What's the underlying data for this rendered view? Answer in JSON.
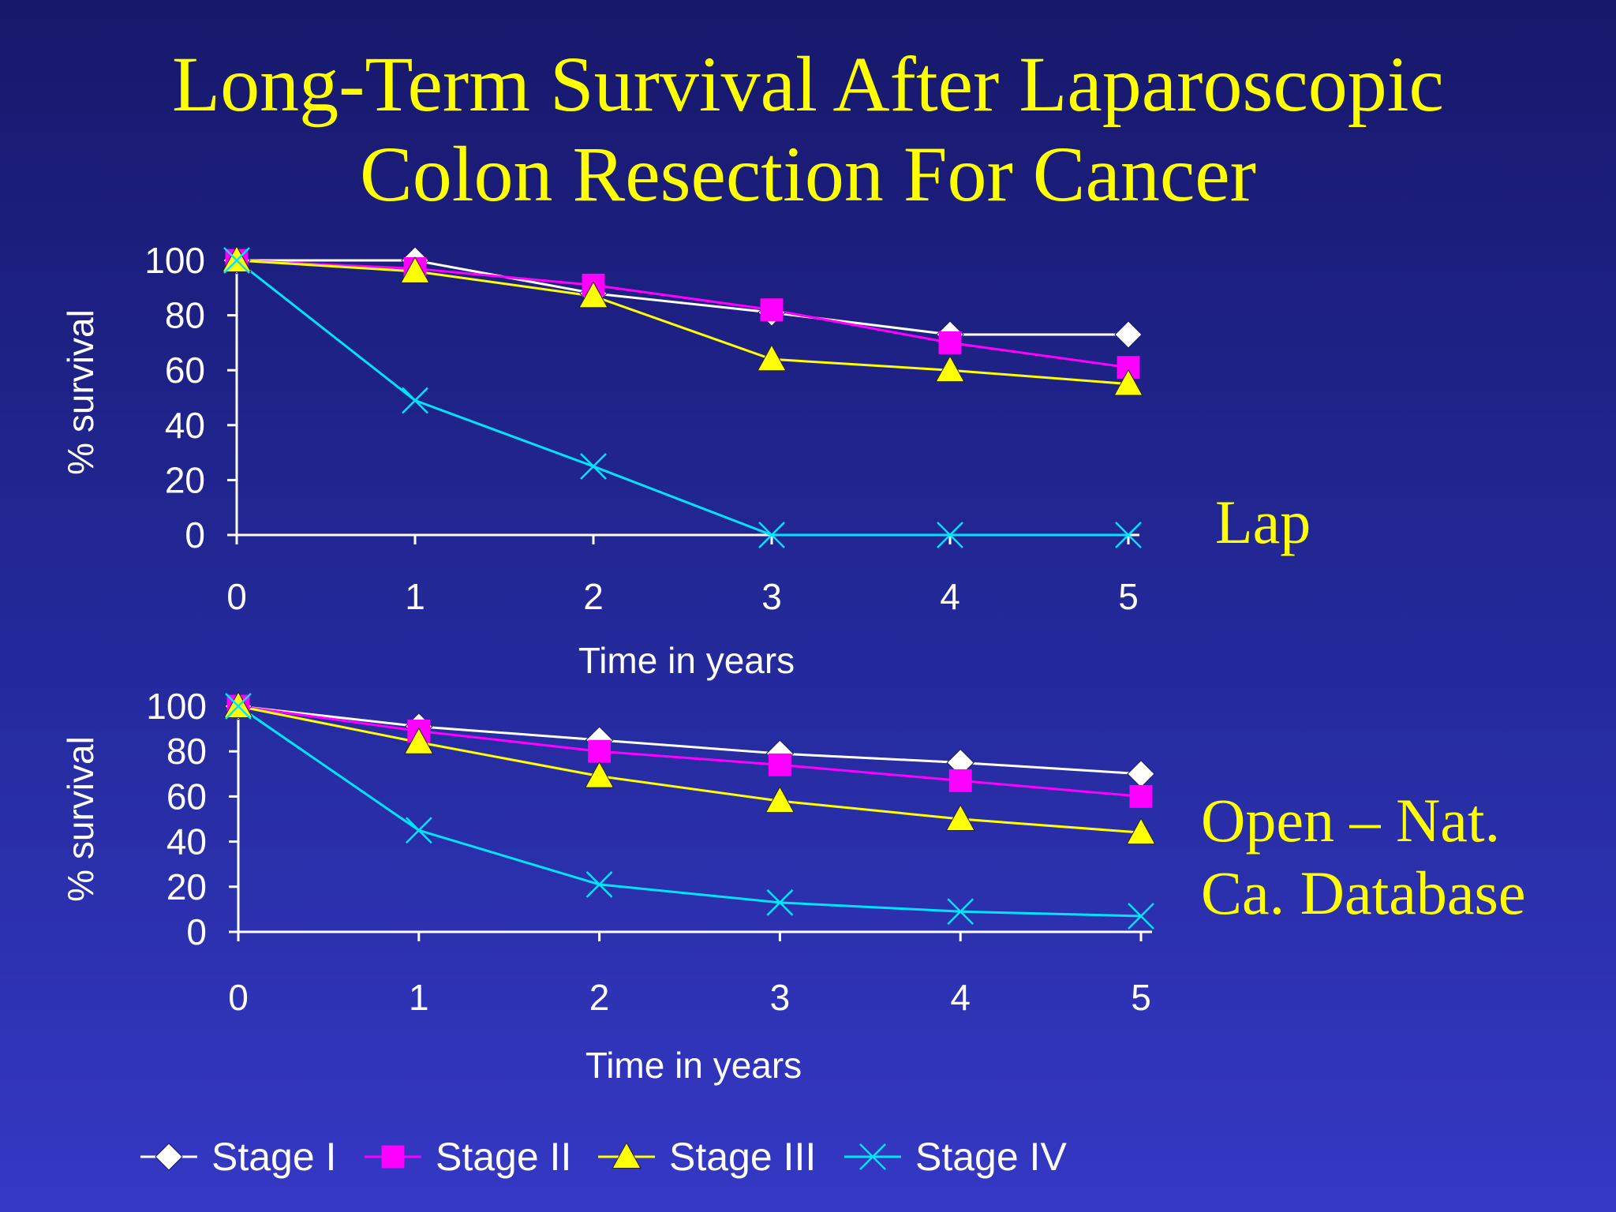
{
  "title": {
    "line1": "Long-Term Survival After Laparoscopic",
    "line2": "Colon Resection For Cancer"
  },
  "colors": {
    "background": "#1e2188",
    "title": "#ffff00",
    "axis": "#ffffff",
    "stage_i": "#ffffff",
    "stage_ii": "#ff00ff",
    "stage_iii": "#ffff00",
    "stage_iv": "#00e5ff"
  },
  "chart_data": [
    {
      "type": "line",
      "panel_label": "Lap",
      "xlabel": "Time in years",
      "ylabel": "% survival",
      "xlim": [
        0,
        5
      ],
      "ylim": [
        0,
        100
      ],
      "x": [
        0,
        1,
        2,
        3,
        4,
        5
      ],
      "yticks": [
        0,
        20,
        40,
        60,
        80,
        100
      ],
      "grid": false,
      "series": [
        {
          "name": "Stage I",
          "marker": "diamond",
          "values": [
            100,
            100,
            88,
            81,
            73,
            73
          ]
        },
        {
          "name": "Stage II",
          "marker": "square",
          "values": [
            100,
            97,
            91,
            82,
            70,
            61
          ]
        },
        {
          "name": "Stage III",
          "marker": "triangle",
          "values": [
            100,
            96,
            87,
            64,
            60,
            55
          ]
        },
        {
          "name": "Stage IV",
          "marker": "x",
          "values": [
            100,
            49,
            25,
            0,
            0,
            0
          ]
        }
      ]
    },
    {
      "type": "line",
      "panel_label": "Open – Nat.\nCa. Database",
      "panel_label_lines": [
        "Open – Nat.",
        "Ca. Database"
      ],
      "xlabel": "Time in years",
      "ylabel": "% survival",
      "xlim": [
        0,
        5
      ],
      "ylim": [
        0,
        100
      ],
      "x": [
        0,
        1,
        2,
        3,
        4,
        5
      ],
      "yticks": [
        0,
        20,
        40,
        60,
        80,
        100
      ],
      "grid": false,
      "series": [
        {
          "name": "Stage I",
          "marker": "diamond",
          "values": [
            100,
            91,
            85,
            79,
            75,
            70
          ]
        },
        {
          "name": "Stage II",
          "marker": "square",
          "values": [
            100,
            89,
            80,
            74,
            67,
            60
          ]
        },
        {
          "name": "Stage III",
          "marker": "triangle",
          "values": [
            100,
            84,
            69,
            58,
            50,
            44
          ]
        },
        {
          "name": "Stage IV",
          "marker": "x",
          "values": [
            100,
            45,
            21,
            13,
            9,
            7
          ]
        }
      ]
    }
  ],
  "legend": {
    "placement": "bottom",
    "items": [
      {
        "label": "Stage I",
        "marker": "diamond"
      },
      {
        "label": "Stage II",
        "marker": "square"
      },
      {
        "label": "Stage III",
        "marker": "triangle"
      },
      {
        "label": "Stage IV",
        "marker": "x"
      }
    ]
  }
}
